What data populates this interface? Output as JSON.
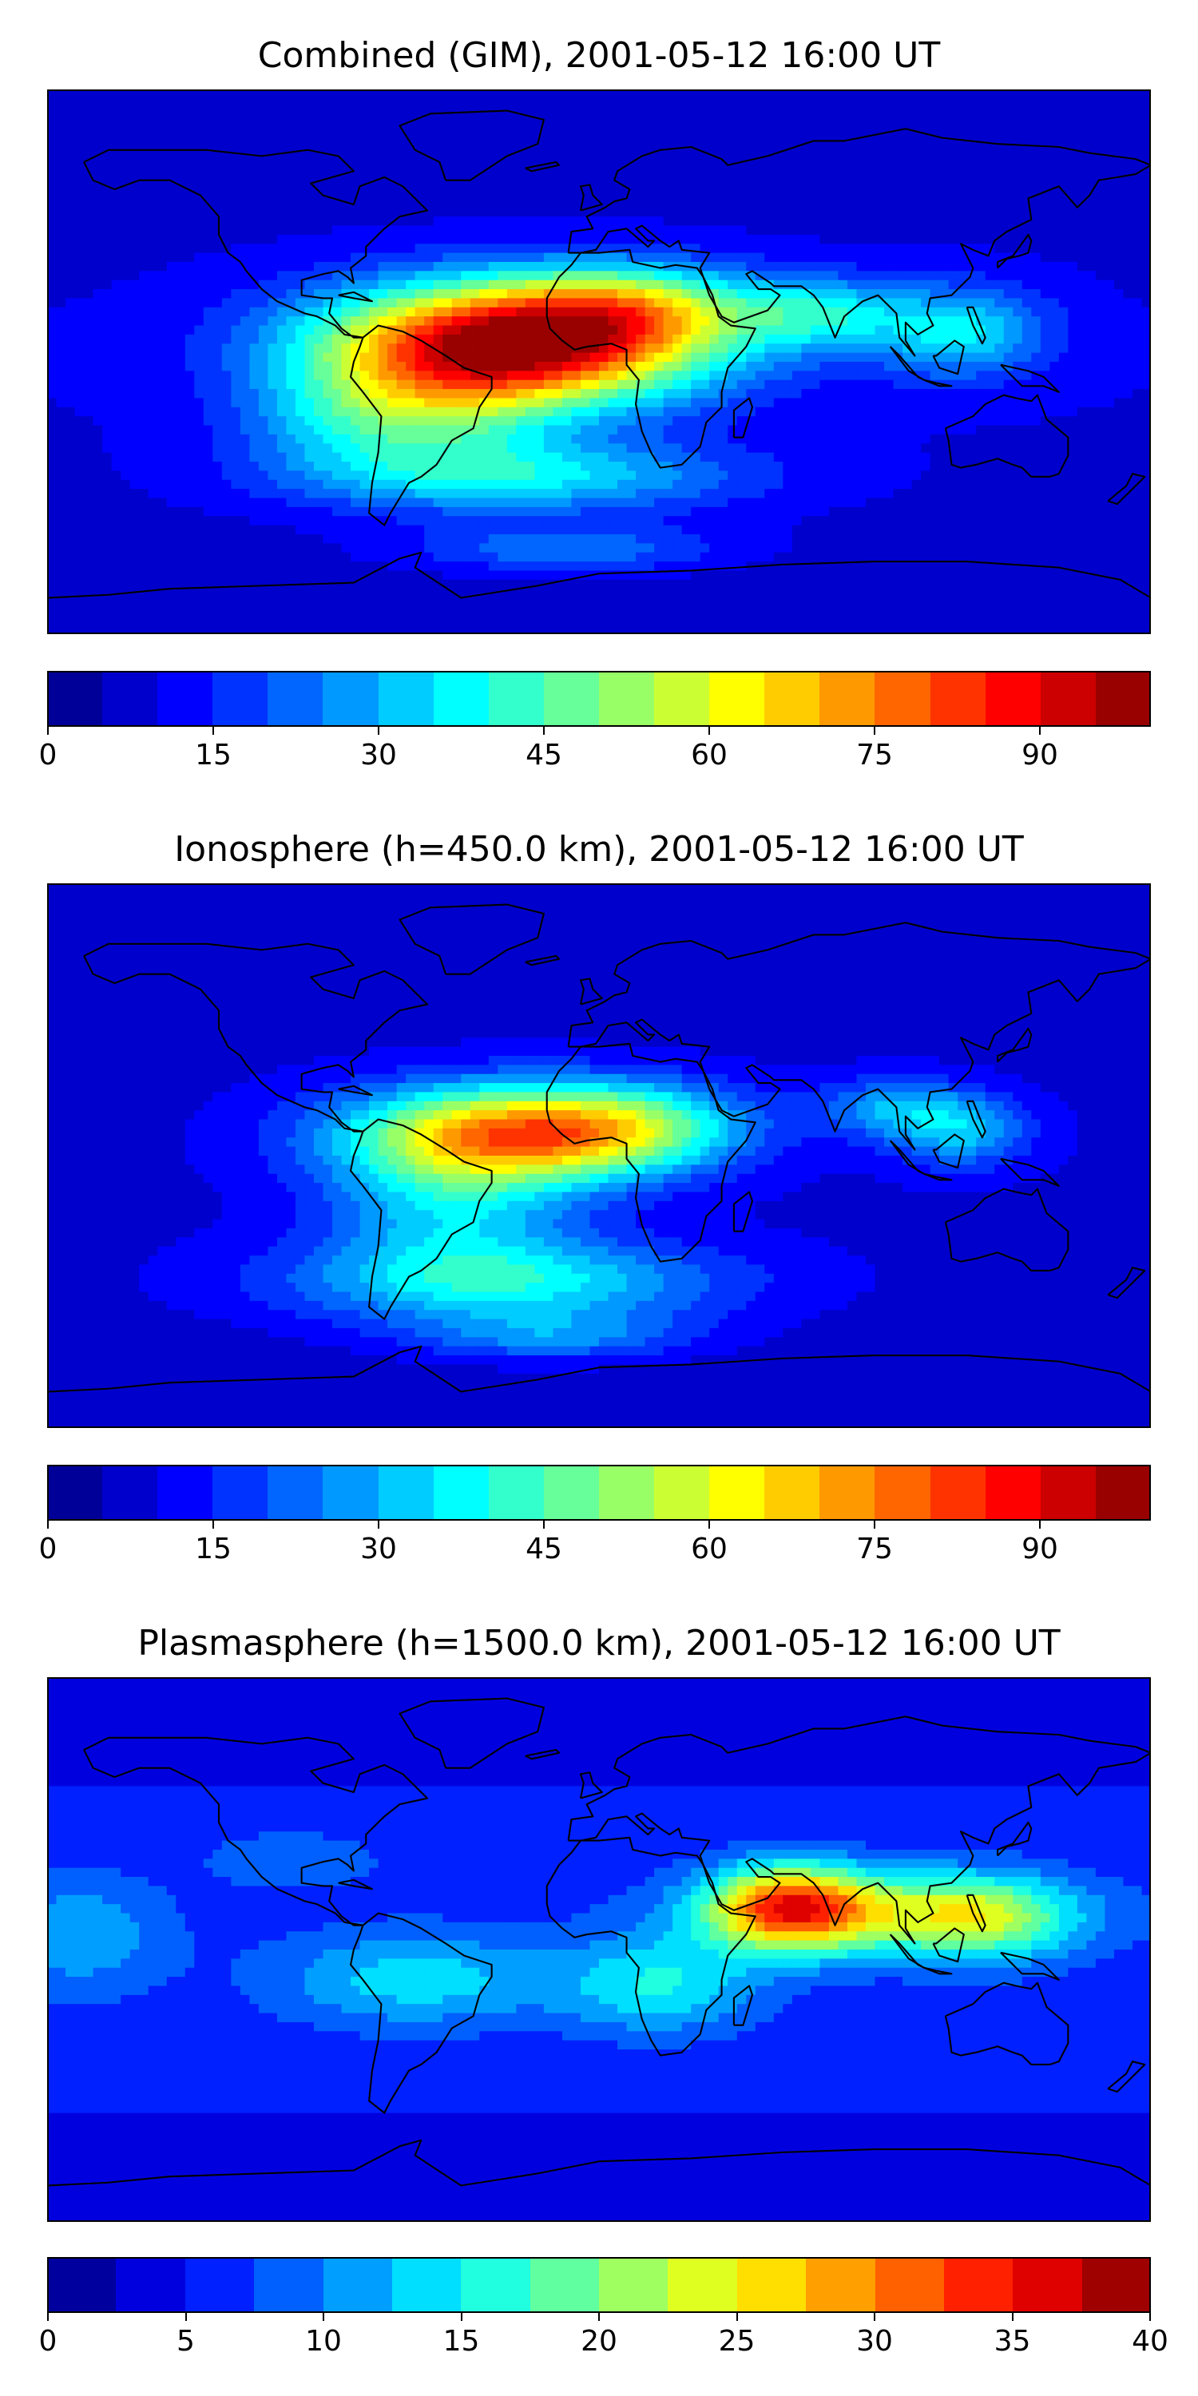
{
  "panels": [
    {
      "title": "Combined (GIM), 2001-05-12 16:00 UT",
      "colorbar": {
        "vmin": 0,
        "vmax": 100,
        "levels": 20,
        "tick_labels": [
          "0",
          "15",
          "30",
          "45",
          "60",
          "75",
          "90"
        ],
        "tick_values": [
          0,
          15,
          30,
          45,
          60,
          75,
          90
        ]
      }
    },
    {
      "title": "Ionosphere  (h=450.0 km), 2001-05-12 16:00 UT",
      "colorbar": {
        "vmin": 0,
        "vmax": 100,
        "levels": 20,
        "tick_labels": [
          "0",
          "15",
          "30",
          "45",
          "60",
          "75",
          "90"
        ],
        "tick_values": [
          0,
          15,
          30,
          45,
          60,
          75,
          90
        ]
      }
    },
    {
      "title": "Plasmasphere (h=1500.0 km), 2001-05-12 16:00 UT",
      "colorbar": {
        "vmin": 0,
        "vmax": 40,
        "levels": 16,
        "tick_labels": [
          "0",
          "5",
          "10",
          "15",
          "20",
          "25",
          "30",
          "35",
          "40"
        ],
        "tick_values": [
          0,
          5,
          10,
          15,
          20,
          25,
          30,
          35,
          40
        ]
      }
    }
  ],
  "colormap": "jet"
}
